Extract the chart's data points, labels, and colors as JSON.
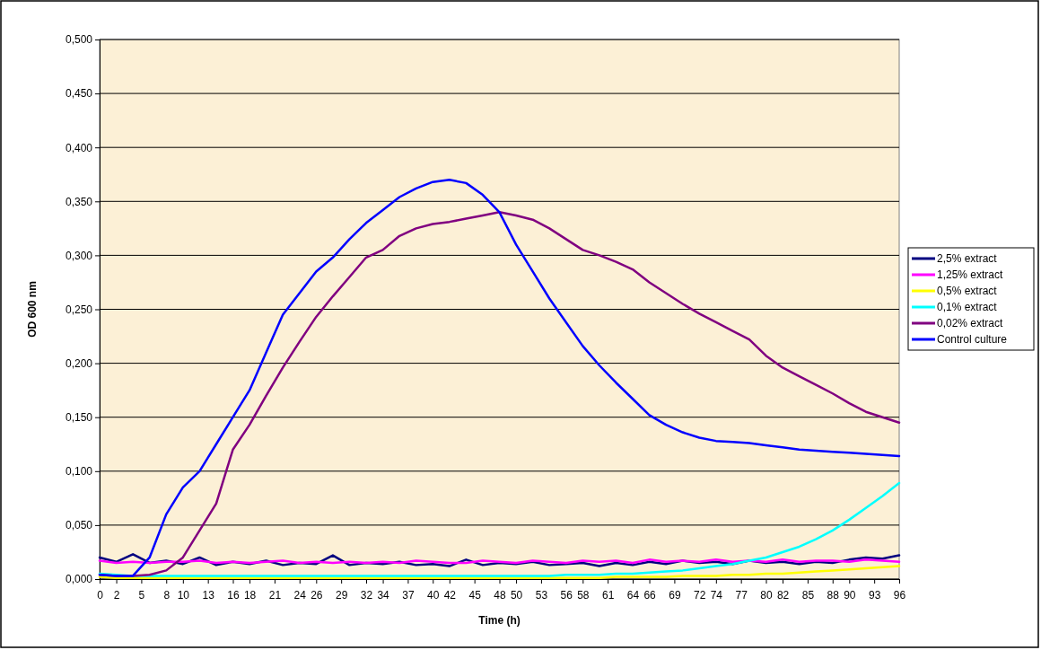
{
  "chart_data": {
    "type": "line",
    "xlabel": "Time (h)",
    "ylabel": "OD 600 nm",
    "x": [
      0,
      2,
      4,
      6,
      8,
      10,
      12,
      14,
      16,
      18,
      20,
      22,
      24,
      26,
      28,
      30,
      32,
      34,
      36,
      38,
      40,
      42,
      44,
      46,
      48,
      50,
      52,
      54,
      56,
      58,
      60,
      62,
      64,
      66,
      68,
      70,
      72,
      74,
      76,
      78,
      80,
      82,
      84,
      86,
      88,
      90,
      92,
      94,
      96
    ],
    "xlim": [
      0,
      96
    ],
    "ylim": [
      0,
      0.5
    ],
    "yticks": [
      {
        "value": 0,
        "label": "0,000"
      },
      {
        "value": 0.05,
        "label": "0,050"
      },
      {
        "value": 0.1,
        "label": "0,100"
      },
      {
        "value": 0.15,
        "label": "0,150"
      },
      {
        "value": 0.2,
        "label": "0,200"
      },
      {
        "value": 0.25,
        "label": "0,250"
      },
      {
        "value": 0.3,
        "label": "0,300"
      },
      {
        "value": 0.35,
        "label": "0,350"
      },
      {
        "value": 0.4,
        "label": "0,400"
      },
      {
        "value": 0.45,
        "label": "0,450"
      },
      {
        "value": 0.5,
        "label": "0,500"
      }
    ],
    "xticks": [
      0,
      2,
      5,
      8,
      10,
      13,
      16,
      18,
      21,
      24,
      26,
      29,
      32,
      34,
      37,
      40,
      42,
      45,
      48,
      50,
      53,
      56,
      58,
      61,
      64,
      66,
      69,
      72,
      74,
      77,
      80,
      82,
      85,
      88,
      90,
      93,
      96
    ],
    "grid": "y",
    "legend": "right",
    "marker": "none",
    "line_style": "solid",
    "series": [
      {
        "name": "2,5% extract",
        "color": "#000080",
        "values": [
          0.02,
          0.016,
          0.023,
          0.015,
          0.017,
          0.014,
          0.02,
          0.013,
          0.016,
          0.014,
          0.017,
          0.013,
          0.015,
          0.014,
          0.022,
          0.013,
          0.015,
          0.014,
          0.016,
          0.013,
          0.014,
          0.012,
          0.018,
          0.013,
          0.015,
          0.014,
          0.016,
          0.013,
          0.014,
          0.015,
          0.012,
          0.015,
          0.013,
          0.016,
          0.014,
          0.017,
          0.015,
          0.016,
          0.014,
          0.017,
          0.015,
          0.016,
          0.014,
          0.016,
          0.015,
          0.018,
          0.02,
          0.019,
          0.022
        ]
      },
      {
        "name": "1,25% extract",
        "color": "#ff00ff",
        "values": [
          0.017,
          0.015,
          0.016,
          0.015,
          0.016,
          0.016,
          0.017,
          0.015,
          0.016,
          0.015,
          0.016,
          0.017,
          0.015,
          0.016,
          0.015,
          0.016,
          0.015,
          0.016,
          0.015,
          0.017,
          0.016,
          0.015,
          0.015,
          0.017,
          0.016,
          0.015,
          0.017,
          0.016,
          0.015,
          0.017,
          0.016,
          0.017,
          0.015,
          0.018,
          0.016,
          0.017,
          0.016,
          0.018,
          0.016,
          0.017,
          0.016,
          0.018,
          0.016,
          0.017,
          0.017,
          0.016,
          0.018,
          0.017,
          0.016
        ]
      },
      {
        "name": "0,5% extract",
        "color": "#ffff00",
        "values": [
          0.002,
          0.001,
          0.001,
          0.001,
          0.001,
          0.001,
          0.001,
          0.001,
          0.001,
          0.001,
          0.001,
          0.001,
          0.001,
          0.001,
          0.001,
          0.001,
          0.001,
          0.001,
          0.001,
          0.001,
          0.001,
          0.001,
          0.001,
          0.001,
          0.001,
          0.001,
          0.001,
          0.001,
          0.001,
          0.001,
          0.001,
          0.002,
          0.002,
          0.002,
          0.002,
          0.003,
          0.003,
          0.003,
          0.004,
          0.004,
          0.005,
          0.005,
          0.006,
          0.007,
          0.008,
          0.009,
          0.01,
          0.011,
          0.012
        ]
      },
      {
        "name": "0,1% extract",
        "color": "#00ffff",
        "values": [
          0.005,
          0.004,
          0.003,
          0.003,
          0.003,
          0.003,
          0.003,
          0.003,
          0.003,
          0.003,
          0.003,
          0.003,
          0.003,
          0.003,
          0.003,
          0.003,
          0.003,
          0.003,
          0.003,
          0.003,
          0.003,
          0.003,
          0.003,
          0.003,
          0.003,
          0.003,
          0.003,
          0.003,
          0.004,
          0.004,
          0.004,
          0.005,
          0.005,
          0.006,
          0.007,
          0.008,
          0.01,
          0.012,
          0.014,
          0.017,
          0.02,
          0.025,
          0.03,
          0.037,
          0.045,
          0.055,
          0.066,
          0.077,
          0.089
        ]
      },
      {
        "name": "0,02% extract",
        "color": "#800080",
        "values": [
          0.004,
          0.003,
          0.003,
          0.004,
          0.008,
          0.02,
          0.045,
          0.07,
          0.12,
          0.143,
          0.17,
          0.196,
          0.22,
          0.243,
          0.262,
          0.28,
          0.298,
          0.305,
          0.318,
          0.325,
          0.329,
          0.331,
          0.334,
          0.337,
          0.34,
          0.337,
          0.333,
          0.325,
          0.315,
          0.305,
          0.3,
          0.294,
          0.287,
          0.275,
          0.265,
          0.255,
          0.246,
          0.238,
          0.23,
          0.222,
          0.207,
          0.196,
          0.188,
          0.18,
          0.172,
          0.163,
          0.155,
          0.15,
          0.145
        ]
      },
      {
        "name": "Control culture",
        "color": "#0000ff",
        "values": [
          0.004,
          0.003,
          0.003,
          0.02,
          0.06,
          0.085,
          0.1,
          0.125,
          0.15,
          0.175,
          0.21,
          0.245,
          0.265,
          0.285,
          0.298,
          0.315,
          0.33,
          0.342,
          0.354,
          0.362,
          0.368,
          0.37,
          0.367,
          0.356,
          0.34,
          0.31,
          0.285,
          0.26,
          0.238,
          0.216,
          0.198,
          0.182,
          0.167,
          0.152,
          0.143,
          0.136,
          0.131,
          0.128,
          0.127,
          0.126,
          0.124,
          0.122,
          0.12,
          0.119,
          0.118,
          0.117,
          0.116,
          0.115,
          0.114
        ]
      }
    ]
  }
}
